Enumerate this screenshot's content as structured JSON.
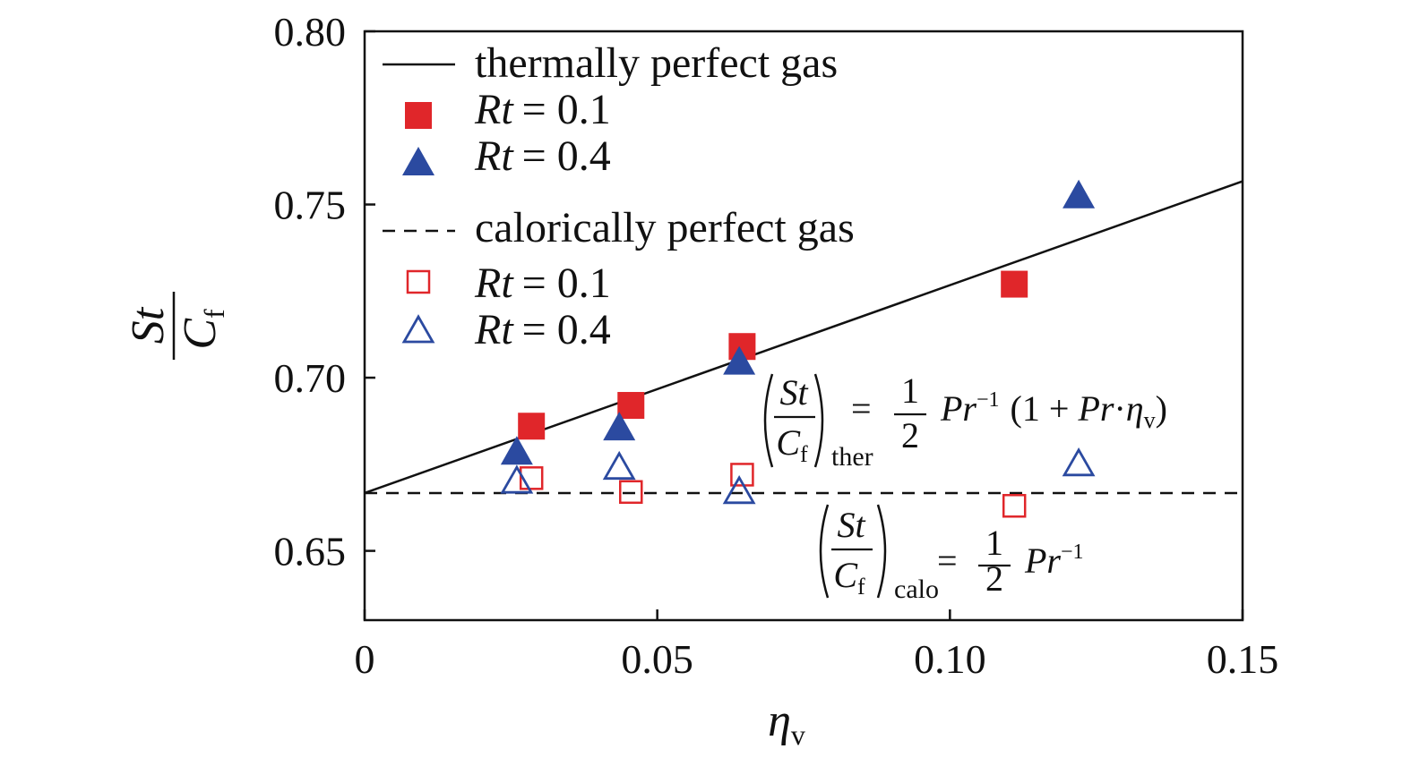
{
  "chart_data": {
    "type": "scatter",
    "xlabel": "η",
    "xlabel_sub": "v",
    "ylabel_num": "St",
    "ylabel_den": "C",
    "ylabel_den_sub": "f",
    "xlim": [
      0,
      0.15
    ],
    "ylim": [
      0.63,
      0.8
    ],
    "x_ticks": [
      0,
      0.05,
      0.1,
      0.15
    ],
    "x_tick_labels": [
      "0",
      "0.05",
      "0.10",
      "0.15"
    ],
    "y_ticks": [
      0.65,
      0.7,
      0.75,
      0.8
    ],
    "y_tick_labels": [
      "0.65",
      "0.70",
      "0.75",
      "0.80"
    ],
    "grid": false,
    "legend_position": "top-left",
    "colors": {
      "red": "#e0262a",
      "blue": "#2b4aa0",
      "line": "#111111"
    },
    "legend": {
      "thermal_label": "thermally perfect gas",
      "calor_label": "calorically perfect gas",
      "rt_symbol": "Rt",
      "rt01": "= 0.1",
      "rt04": "= 0.4"
    },
    "lines": [
      {
        "name": "thermally perfect gas",
        "style": "solid",
        "x": [
          0,
          0.15
        ],
        "y": [
          0.6667,
          0.7567
        ]
      },
      {
        "name": "calorically perfect gas",
        "style": "dashed",
        "x": [
          0,
          0.15
        ],
        "y": [
          0.6667,
          0.6667
        ]
      }
    ],
    "series": [
      {
        "name": "Rt = 0.1",
        "group": "thermally perfect gas",
        "marker": "square",
        "fill": "filled",
        "color": "#e0262a",
        "x": [
          0.0285,
          0.0455,
          0.0645,
          0.111
        ],
        "y": [
          0.686,
          0.692,
          0.709,
          0.727
        ]
      },
      {
        "name": "Rt = 0.4",
        "group": "thermally perfect gas",
        "marker": "triangle",
        "fill": "filled",
        "color": "#2b4aa0",
        "x": [
          0.026,
          0.0435,
          0.064,
          0.122
        ],
        "y": [
          0.678,
          0.685,
          0.704,
          0.752
        ]
      },
      {
        "name": "Rt = 0.1",
        "group": "calorically perfect gas",
        "marker": "square",
        "fill": "open",
        "color": "#e0262a",
        "x": [
          0.0285,
          0.0455,
          0.0645,
          0.111
        ],
        "y": [
          0.671,
          0.667,
          0.672,
          0.663
        ]
      },
      {
        "name": "Rt = 0.4",
        "group": "calorically perfect gas",
        "marker": "triangle",
        "fill": "open",
        "color": "#2b4aa0",
        "x": [
          0.026,
          0.0435,
          0.064,
          0.122
        ],
        "y": [
          0.67,
          0.674,
          0.667,
          0.675
        ]
      }
    ],
    "annotations": {
      "ther": {
        "num": "St",
        "den": "C",
        "den_sub": "f",
        "sub": "ther",
        "eq": "=",
        "half_num": "1",
        "half_den": "2",
        "pr": "Pr",
        "pr_exp": "−1",
        "paren_open": "(1 + ",
        "pr2": "Pr",
        "dot": "·",
        "eta": "η",
        "eta_sub": "v",
        "paren_close": ")"
      },
      "calo": {
        "num": "St",
        "den": "C",
        "den_sub": "f",
        "sub": "calo",
        "eq": "=",
        "half_num": "1",
        "half_den": "2",
        "pr": "Pr",
        "pr_exp": "−1"
      }
    }
  }
}
